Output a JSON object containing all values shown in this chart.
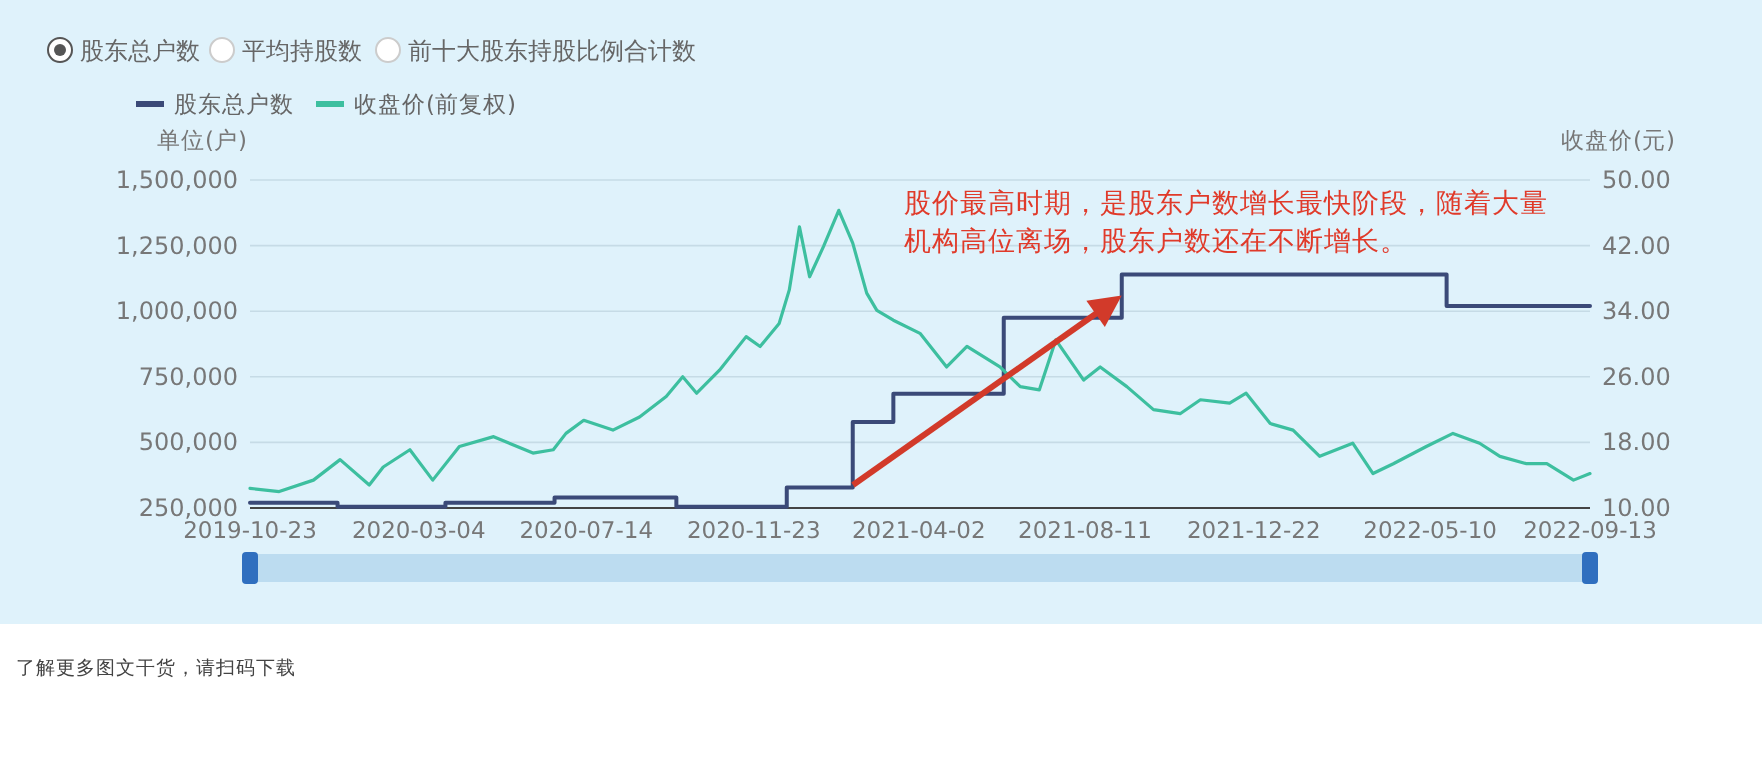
{
  "chart_data": {
    "type": "line",
    "ylabel": "单位(户)",
    "y2label": "收盘价(元)",
    "series": [
      {
        "name": "股东总户数",
        "type": "step",
        "color": "#3b4a78",
        "x": [
          "2019-10-23",
          "2019-12-31",
          "2020-03-25",
          "2020-06-19",
          "2020-09-23",
          "2020-12-19",
          "2021-02-09",
          "2021-03-13",
          "2021-06-08",
          "2021-09-09",
          "2022-05-23",
          "2022-09-13"
        ],
        "values": [
          270000,
          255000,
          270000,
          290000,
          255000,
          328000,
          578000,
          685000,
          975000,
          1140000,
          1020000,
          1020000
        ]
      },
      {
        "name": "收盘价(前复权)",
        "axis": "y2",
        "color": "#3dbf9f",
        "x": [
          "2019-10-23",
          "2019-11-15",
          "2019-12-12",
          "2020-01-02",
          "2020-01-25",
          "2020-02-05",
          "2020-02-26",
          "2020-03-15",
          "2020-04-05",
          "2020-05-02",
          "2020-06-02",
          "2020-06-18",
          "2020-06-28",
          "2020-07-12",
          "2020-08-04",
          "2020-08-25",
          "2020-09-15",
          "2020-09-28",
          "2020-10-09",
          "2020-10-27",
          "2020-11-17",
          "2020-11-28",
          "2020-12-13",
          "2020-12-21",
          "2020-12-29",
          "2021-01-06",
          "2021-01-17",
          "2021-01-29",
          "2021-02-09",
          "2021-02-20",
          "2021-02-28",
          "2021-03-13",
          "2021-04-03",
          "2021-04-24",
          "2021-05-10",
          "2021-06-05",
          "2021-06-21",
          "2021-07-06",
          "2021-07-19",
          "2021-08-10",
          "2021-08-23",
          "2021-09-13",
          "2021-10-04",
          "2021-10-25",
          "2021-11-10",
          "2021-12-03",
          "2021-12-16",
          "2022-01-04",
          "2022-01-22",
          "2022-02-12",
          "2022-03-10",
          "2022-03-26",
          "2022-04-11",
          "2022-05-07",
          "2022-05-28",
          "2022-06-18",
          "2022-07-04",
          "2022-07-25",
          "2022-08-10",
          "2022-08-31",
          "2022-09-13"
        ],
        "values": [
          12.4,
          12.0,
          13.4,
          15.9,
          12.8,
          15.0,
          17.1,
          13.4,
          17.5,
          18.7,
          16.7,
          17.1,
          19.1,
          20.7,
          19.5,
          21.1,
          23.6,
          26.0,
          24.0,
          26.8,
          30.9,
          29.7,
          32.5,
          36.6,
          44.3,
          38.2,
          41.9,
          46.3,
          42.3,
          36.2,
          34.1,
          32.9,
          31.3,
          27.2,
          29.7,
          27.2,
          24.8,
          24.4,
          30.5,
          25.6,
          27.2,
          24.8,
          22.0,
          21.5,
          23.2,
          22.8,
          24.0,
          20.3,
          19.5,
          16.3,
          17.9,
          14.2,
          15.4,
          17.5,
          19.1,
          17.9,
          16.3,
          15.4,
          15.4,
          13.4,
          14.2
        ]
      }
    ],
    "xlim": [
      "2019-10-23",
      "2022-09-13"
    ],
    "xticks": [
      "2019-10-23",
      "2020-03-04",
      "2020-07-14",
      "2020-11-23",
      "2021-04-02",
      "2021-08-11",
      "2021-12-22",
      "2022-05-10",
      "2022-09-13"
    ],
    "ylim": [
      250000,
      1500000
    ],
    "yticks": [
      {
        "value": 250000,
        "label": "250,000"
      },
      {
        "value": 500000,
        "label": "500,000"
      },
      {
        "value": 750000,
        "label": "750,000"
      },
      {
        "value": 1000000,
        "label": "1,000,000"
      },
      {
        "value": 1250000,
        "label": "1,250,000"
      },
      {
        "value": 1500000,
        "label": "1,500,000"
      }
    ],
    "y2lim": [
      10,
      50
    ],
    "y2ticks": [
      {
        "value": 10,
        "label": "10.00"
      },
      {
        "value": 18,
        "label": "18.00"
      },
      {
        "value": 26,
        "label": "26.00"
      },
      {
        "value": 34,
        "label": "34.00"
      },
      {
        "value": 42,
        "label": "42.00"
      },
      {
        "value": 50,
        "label": "50.00"
      }
    ],
    "grid": "y",
    "legend": "top",
    "annotations": [
      {
        "text": "股价最高时期，是股东户数增长最快阶段，随着大量机构高位离场，股东户数还在不断增长。",
        "x": "2021-09-09",
        "y": 1060000
      },
      "股东总户数",
      "平均持股数",
      "前十大股东持股比例合计数",
      "了解更多图文干货，请扫码下载"
    ]
  }
}
